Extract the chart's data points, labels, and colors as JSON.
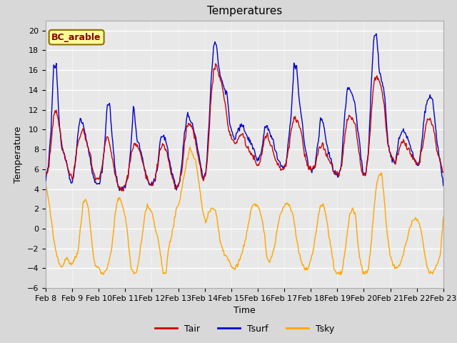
{
  "title": "Temperatures",
  "xlabel": "Time",
  "ylabel": "Temperature",
  "ylim": [
    -6,
    21
  ],
  "x_tick_labels": [
    "Feb 8",
    "Feb 9",
    "Feb 10",
    "Feb 11",
    "Feb 12",
    "Feb 13",
    "Feb 14",
    "Feb 15",
    "Feb 16",
    "Feb 17",
    "Feb 18",
    "Feb 19",
    "Feb 20",
    "Feb 21",
    "Feb 22",
    "Feb 23"
  ],
  "annotation_text": "BC_arable",
  "annotation_color": "#8B0000",
  "annotation_bg": "#FFFF99",
  "annotation_edge": "#8B7000",
  "tair_color": "#CC0000",
  "tsurf_color": "#0000CC",
  "tsky_color": "#FFA500",
  "line_width": 1.0,
  "bg_color": "#D8D8D8",
  "plot_bg_color": "#E8E8E8",
  "title_fontsize": 11,
  "label_fontsize": 9,
  "tick_fontsize": 8,
  "legend_fontsize": 9,
  "yticks": [
    -6,
    -4,
    -2,
    0,
    2,
    4,
    6,
    8,
    10,
    12,
    14,
    16,
    18,
    20
  ],
  "tair_base": [
    5.5,
    6.0,
    8.5,
    11.5,
    12.0,
    10.5,
    8.5,
    7.5,
    6.5,
    5.5,
    5.0,
    6.5,
    8.5,
    9.5,
    10.0,
    9.0,
    8.0,
    7.0,
    5.5,
    5.0,
    5.0,
    6.0,
    8.0,
    9.5,
    8.5,
    7.0,
    5.5,
    4.5,
    4.0,
    4.0,
    4.5,
    5.5,
    7.5,
    8.5,
    8.5,
    8.0,
    7.0,
    6.0,
    5.0,
    4.5,
    4.5,
    5.0,
    6.5,
    8.0,
    8.5,
    8.0,
    7.0,
    5.5,
    4.5,
    4.0,
    4.5,
    6.0,
    8.5,
    10.5,
    10.5,
    10.0,
    9.0,
    7.5,
    6.0,
    5.0,
    5.5,
    8.5,
    13.5,
    16.0,
    16.5,
    15.5,
    14.5,
    13.0,
    11.0,
    9.5,
    9.0,
    8.5,
    9.0,
    9.5,
    9.5,
    8.5,
    8.0,
    7.5,
    7.0,
    6.5,
    6.5,
    7.5,
    9.0,
    9.5,
    9.0,
    8.0,
    7.0,
    6.5,
    6.0,
    6.0,
    6.5,
    8.0,
    10.0,
    11.0,
    11.0,
    10.5,
    9.5,
    7.5,
    6.5,
    6.0,
    6.0,
    6.5,
    7.5,
    8.5,
    8.5,
    7.5,
    7.0,
    6.5,
    5.5,
    5.5,
    5.5,
    6.5,
    9.0,
    11.0,
    11.5,
    11.0,
    10.5,
    8.5,
    6.5,
    5.5,
    5.5,
    7.5,
    11.5,
    15.0,
    15.5,
    15.0,
    14.0,
    12.0,
    9.0,
    7.5,
    7.0,
    6.5,
    7.5,
    8.5,
    9.0,
    8.5,
    8.0,
    7.5,
    7.0,
    6.5,
    6.5,
    8.0,
    9.5,
    11.0,
    11.0,
    10.5,
    9.0,
    7.5,
    6.5,
    5.5
  ],
  "tsurf_base": [
    5.0,
    6.5,
    10.0,
    16.5,
    16.5,
    11.0,
    8.0,
    7.5,
    6.5,
    5.0,
    4.5,
    6.5,
    9.5,
    11.0,
    10.5,
    9.5,
    8.0,
    6.5,
    5.0,
    4.5,
    4.5,
    5.5,
    8.0,
    12.5,
    12.5,
    9.0,
    6.0,
    4.5,
    4.0,
    4.0,
    4.5,
    5.5,
    8.5,
    12.5,
    9.5,
    8.5,
    7.5,
    6.0,
    5.0,
    4.5,
    4.5,
    5.0,
    6.5,
    9.0,
    9.5,
    9.0,
    7.5,
    6.0,
    5.0,
    4.0,
    4.5,
    6.5,
    9.5,
    11.5,
    11.0,
    10.5,
    9.5,
    8.0,
    6.5,
    5.0,
    5.5,
    9.5,
    15.0,
    18.5,
    18.5,
    16.0,
    15.0,
    14.0,
    13.5,
    10.5,
    9.5,
    9.0,
    10.0,
    10.5,
    10.5,
    9.5,
    9.0,
    8.5,
    8.0,
    7.0,
    7.0,
    8.0,
    10.0,
    10.5,
    9.5,
    9.0,
    8.0,
    7.0,
    6.5,
    6.0,
    6.5,
    9.0,
    11.5,
    16.5,
    16.5,
    13.0,
    11.0,
    8.5,
    7.0,
    6.0,
    6.0,
    6.5,
    8.5,
    11.0,
    11.0,
    9.0,
    7.5,
    7.0,
    5.5,
    5.5,
    5.5,
    7.0,
    11.5,
    14.0,
    14.0,
    13.5,
    12.5,
    10.0,
    7.5,
    5.5,
    5.5,
    8.0,
    14.5,
    19.5,
    19.5,
    16.0,
    15.0,
    13.5,
    9.5,
    7.5,
    7.0,
    6.5,
    8.5,
    9.5,
    10.0,
    9.5,
    9.0,
    8.0,
    7.0,
    6.5,
    6.5,
    9.0,
    11.5,
    13.0,
    13.5,
    13.0,
    10.5,
    8.0,
    6.5,
    4.5
  ],
  "tsky_base": [
    4.5,
    3.0,
    1.0,
    -1.0,
    -2.5,
    -3.5,
    -4.0,
    -3.5,
    -3.0,
    -3.5,
    -3.5,
    -3.0,
    -2.5,
    0.0,
    2.5,
    3.0,
    2.0,
    -0.5,
    -3.0,
    -4.0,
    -4.0,
    -4.5,
    -4.5,
    -4.0,
    -3.0,
    -1.5,
    1.5,
    3.0,
    3.0,
    2.0,
    1.0,
    -1.5,
    -4.0,
    -4.5,
    -4.5,
    -3.0,
    -1.0,
    1.0,
    2.5,
    2.0,
    1.5,
    0.0,
    -1.0,
    -2.5,
    -4.5,
    -4.5,
    -2.0,
    -1.0,
    0.5,
    2.0,
    2.5,
    4.0,
    5.5,
    7.0,
    8.0,
    7.5,
    7.0,
    5.5,
    3.5,
    1.5,
    0.5,
    1.5,
    2.0,
    2.0,
    1.5,
    -0.5,
    -2.0,
    -2.5,
    -3.0,
    -3.5,
    -4.0,
    -4.0,
    -3.5,
    -3.0,
    -2.0,
    -1.0,
    0.5,
    2.0,
    2.5,
    2.5,
    2.0,
    1.0,
    -0.5,
    -3.0,
    -3.5,
    -2.5,
    -1.5,
    0.5,
    1.5,
    2.0,
    2.5,
    2.5,
    2.0,
    1.0,
    -1.0,
    -2.5,
    -3.5,
    -4.0,
    -4.0,
    -3.5,
    -2.5,
    -1.0,
    1.0,
    2.5,
    2.5,
    1.5,
    -0.5,
    -2.0,
    -4.0,
    -4.5,
    -4.5,
    -4.5,
    -2.5,
    -0.5,
    1.5,
    2.0,
    1.5,
    -1.5,
    -3.5,
    -4.5,
    -4.5,
    -4.0,
    -1.5,
    2.0,
    4.5,
    5.5,
    5.5,
    2.5,
    -0.5,
    -2.5,
    -3.5,
    -4.0,
    -4.0,
    -3.5,
    -2.5,
    -1.5,
    -0.5,
    0.5,
    1.0,
    1.0,
    0.5,
    -0.5,
    -2.5,
    -4.0,
    -4.5,
    -4.5,
    -4.0,
    -3.5,
    -2.5,
    1.0
  ]
}
